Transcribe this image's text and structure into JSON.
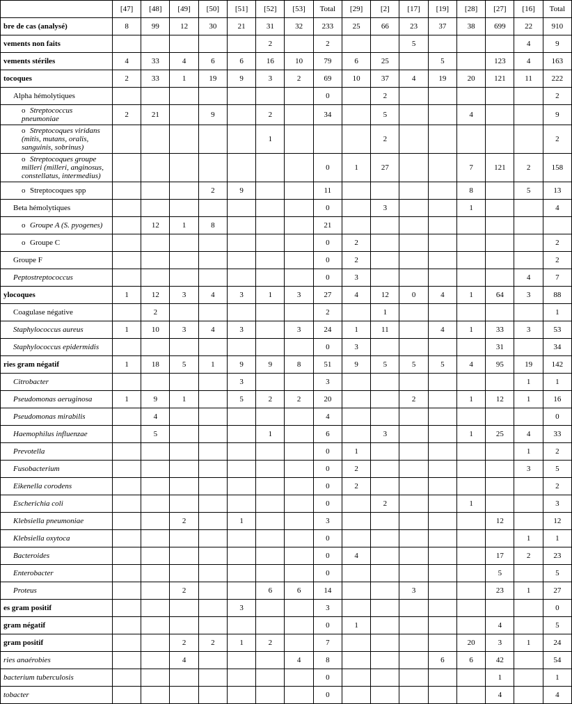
{
  "columns": [
    "[47]",
    "[48]",
    "[49]",
    "[50]",
    "[51]",
    "[52]",
    "[53]",
    "Total",
    "[29]",
    "[2]",
    "[17]",
    "[19]",
    "[28]",
    "[27]",
    "[16]",
    "Total"
  ],
  "rows": [
    {
      "label": "bre de cas (analysé)",
      "bold": true,
      "indent": 0,
      "vals": [
        "8",
        "99",
        "12",
        "30",
        "21",
        "31",
        "32",
        "233",
        "25",
        "66",
        "23",
        "37",
        "38",
        "699",
        "22",
        "910"
      ]
    },
    {
      "label": "vements non faits",
      "bold": true,
      "indent": 0,
      "vals": [
        "",
        "",
        "",
        "",
        "",
        "2",
        "",
        "2",
        "",
        "",
        "5",
        "",
        "",
        "",
        "4",
        "9"
      ]
    },
    {
      "label": "vements stériles",
      "bold": true,
      "indent": 0,
      "vals": [
        "4",
        "33",
        "4",
        "6",
        "6",
        "16",
        "10",
        "79",
        "6",
        "25",
        "",
        "5",
        "",
        "123",
        "4",
        "163"
      ]
    },
    {
      "label": "tocoques",
      "bold": true,
      "indent": 0,
      "vals": [
        "2",
        "33",
        "1",
        "19",
        "9",
        "3",
        "2",
        "69",
        "10",
        "37",
        "4",
        "19",
        "20",
        "121",
        "11",
        "222"
      ]
    },
    {
      "label": "Alpha hémolytiques",
      "indent": 1,
      "vals": [
        "",
        "",
        "",
        "",
        "",
        "",
        "",
        "0",
        "",
        "2",
        "",
        "",
        "",
        "",
        "",
        "2"
      ]
    },
    {
      "label": "Streptococcus pneumoniae",
      "ital": true,
      "indent": 2,
      "bullet": true,
      "vals": [
        "2",
        "21",
        "",
        "9",
        "",
        "2",
        "",
        "34",
        "",
        "5",
        "",
        "",
        "4",
        "",
        "",
        "9"
      ]
    },
    {
      "label": "Streptocoques viridans (mitis, mutans, oralis, sanguinis, sobrinus)",
      "ital": true,
      "indent": 2,
      "bullet": true,
      "vals": [
        "",
        "",
        "",
        "",
        "",
        "1",
        "",
        "",
        "",
        "2",
        "",
        "",
        "",
        "",
        "",
        "2"
      ]
    },
    {
      "label": "Streptocoques groupe milleri (milleri, anginosus, constellatus, intermedius)",
      "ital": true,
      "indent": 2,
      "bullet": true,
      "vals": [
        "",
        "",
        "",
        "",
        "",
        "",
        "",
        "0",
        "1",
        "27",
        "",
        "",
        "7",
        "121",
        "2",
        "158"
      ]
    },
    {
      "label": "Streptocoques spp",
      "indent": 2,
      "bullet": true,
      "vals": [
        "",
        "",
        "",
        "2",
        "9",
        "",
        "",
        "11",
        "",
        "",
        "",
        "",
        "8",
        "",
        "5",
        "13"
      ]
    },
    {
      "label": "Beta hémolytiques",
      "indent": 1,
      "vals": [
        "",
        "",
        "",
        "",
        "",
        "",
        "",
        "0",
        "",
        "3",
        "",
        "",
        "1",
        "",
        "",
        "4"
      ]
    },
    {
      "label": "Groupe A (S. pyogenes)",
      "ital": true,
      "indent": 2,
      "bullet": true,
      "vals": [
        "",
        "12",
        "1",
        "8",
        "",
        "",
        "",
        "21",
        "",
        "",
        "",
        "",
        "",
        "",
        "",
        ""
      ]
    },
    {
      "label": "Groupe C",
      "indent": 2,
      "bullet": true,
      "vals": [
        "",
        "",
        "",
        "",
        "",
        "",
        "",
        "0",
        "2",
        "",
        "",
        "",
        "",
        "",
        "",
        "2"
      ]
    },
    {
      "label": "Groupe F",
      "indent": 1,
      "vals": [
        "",
        "",
        "",
        "",
        "",
        "",
        "",
        "0",
        "2",
        "",
        "",
        "",
        "",
        "",
        "",
        "2"
      ]
    },
    {
      "label": "Peptostreptococcus",
      "ital": true,
      "indent": 1,
      "vals": [
        "",
        "",
        "",
        "",
        "",
        "",
        "",
        "0",
        "3",
        "",
        "",
        "",
        "",
        "",
        "4",
        "7"
      ]
    },
    {
      "label": "ylocoques",
      "bold": true,
      "indent": 0,
      "vals": [
        "1",
        "12",
        "3",
        "4",
        "3",
        "1",
        "3",
        "27",
        "4",
        "12",
        "0",
        "4",
        "1",
        "64",
        "3",
        "88"
      ]
    },
    {
      "label": "Coagulase négative",
      "indent": 1,
      "vals": [
        "",
        "2",
        "",
        "",
        "",
        "",
        "",
        "2",
        "",
        "1",
        "",
        "",
        "",
        "",
        "",
        "1"
      ]
    },
    {
      "label": "Staphylococcus aureus",
      "ital": true,
      "indent": 1,
      "vals": [
        "1",
        "10",
        "3",
        "4",
        "3",
        "",
        "3",
        "24",
        "1",
        "11",
        "",
        "4",
        "1",
        "33",
        "3",
        "53"
      ]
    },
    {
      "label": "Staphylococcus epidermidis",
      "ital": true,
      "indent": 1,
      "vals": [
        "",
        "",
        "",
        "",
        "",
        "",
        "",
        "0",
        "3",
        "",
        "",
        "",
        "",
        "31",
        "",
        "34"
      ]
    },
    {
      "label": "ries gram négatif",
      "bold": true,
      "indent": 0,
      "vals": [
        "1",
        "18",
        "5",
        "1",
        "9",
        "9",
        "8",
        "51",
        "9",
        "5",
        "5",
        "5",
        "4",
        "95",
        "19",
        "142"
      ]
    },
    {
      "label": "Citrobacter",
      "ital": true,
      "indent": 1,
      "vals": [
        "",
        "",
        "",
        "",
        "3",
        "",
        "",
        "3",
        "",
        "",
        "",
        "",
        "",
        "",
        "1",
        "1"
      ]
    },
    {
      "label": "Pseudomonas aeruginosa",
      "ital": true,
      "indent": 1,
      "vals": [
        "1",
        "9",
        "1",
        "",
        "5",
        "2",
        "2",
        "20",
        "",
        "",
        "2",
        "",
        "1",
        "12",
        "1",
        "16"
      ]
    },
    {
      "label": "Pseudomonas mirabilis",
      "ital": true,
      "indent": 1,
      "vals": [
        "",
        "4",
        "",
        "",
        "",
        "",
        "",
        "4",
        "",
        "",
        "",
        "",
        "",
        "",
        "",
        "0"
      ]
    },
    {
      "label": "Haemophilus influenzae",
      "ital": true,
      "indent": 1,
      "vals": [
        "",
        "5",
        "",
        "",
        "",
        "1",
        "",
        "6",
        "",
        "3",
        "",
        "",
        "1",
        "25",
        "4",
        "33"
      ]
    },
    {
      "label": "Prevotella",
      "ital": true,
      "indent": 1,
      "vals": [
        "",
        "",
        "",
        "",
        "",
        "",
        "",
        "0",
        "1",
        "",
        "",
        "",
        "",
        "",
        "1",
        "2"
      ]
    },
    {
      "label": "Fusobacterium",
      "ital": true,
      "indent": 1,
      "vals": [
        "",
        "",
        "",
        "",
        "",
        "",
        "",
        "0",
        "2",
        "",
        "",
        "",
        "",
        "",
        "3",
        "5"
      ]
    },
    {
      "label": "Eikenella corodens",
      "ital": true,
      "indent": 1,
      "vals": [
        "",
        "",
        "",
        "",
        "",
        "",
        "",
        "0",
        "2",
        "",
        "",
        "",
        "",
        "",
        "",
        "2"
      ]
    },
    {
      "label": "Escherichia coli",
      "ital": true,
      "indent": 1,
      "vals": [
        "",
        "",
        "",
        "",
        "",
        "",
        "",
        "0",
        "",
        "2",
        "",
        "",
        "1",
        "",
        "",
        "3"
      ]
    },
    {
      "label": "Klebsiella pneumoniae",
      "ital": true,
      "indent": 1,
      "vals": [
        "",
        "",
        "2",
        "",
        "1",
        "",
        "",
        "3",
        "",
        "",
        "",
        "",
        "",
        "12",
        "",
        "12"
      ]
    },
    {
      "label": "Klebsiella oxytoca",
      "ital": true,
      "indent": 1,
      "vals": [
        "",
        "",
        "",
        "",
        "",
        "",
        "",
        "0",
        "",
        "",
        "",
        "",
        "",
        "",
        "1",
        "1"
      ]
    },
    {
      "label": "Bacteroides",
      "ital": true,
      "indent": 1,
      "vals": [
        "",
        "",
        "",
        "",
        "",
        "",
        "",
        "0",
        "4",
        "",
        "",
        "",
        "",
        "17",
        "2",
        "23"
      ]
    },
    {
      "label": "Enterobacter",
      "ital": true,
      "indent": 1,
      "vals": [
        "",
        "",
        "",
        "",
        "",
        "",
        "",
        "0",
        "",
        "",
        "",
        "",
        "",
        "5",
        "",
        "5"
      ]
    },
    {
      "label": "Proteus",
      "ital": true,
      "indent": 1,
      "vals": [
        "",
        "",
        "2",
        "",
        "",
        "6",
        "6",
        "14",
        "",
        "",
        "3",
        "",
        "",
        "23",
        "1",
        "27"
      ]
    },
    {
      "label": "es gram positif",
      "bold": true,
      "indent": 0,
      "vals": [
        "",
        "",
        "",
        "",
        "3",
        "",
        "",
        "3",
        "",
        "",
        "",
        "",
        "",
        "",
        "",
        "0"
      ]
    },
    {
      "label": " gram négatif",
      "bold": true,
      "indent": 0,
      "vals": [
        "",
        "",
        "",
        "",
        "",
        "",
        "",
        "0",
        "1",
        "",
        "",
        "",
        "",
        "4",
        "",
        "5"
      ]
    },
    {
      "label": " gram positif",
      "bold": true,
      "indent": 0,
      "vals": [
        "",
        "",
        "2",
        "2",
        "1",
        "2",
        "",
        "7",
        "",
        "",
        "",
        "",
        "20",
        "3",
        "1",
        "24"
      ]
    },
    {
      "label": "ries anaérobies",
      "ital": true,
      "indent": 0,
      "vals": [
        "",
        "",
        "4",
        "",
        "",
        "",
        "4",
        "8",
        "",
        "",
        "",
        "6",
        "6",
        "42",
        "",
        "54"
      ]
    },
    {
      "label": "bacterium tuberculosis",
      "ital": true,
      "indent": 0,
      "vals": [
        "",
        "",
        "",
        "",
        "",
        "",
        "",
        "0",
        "",
        "",
        "",
        "",
        "",
        "1",
        "",
        "1"
      ]
    },
    {
      "label": "tobacter",
      "ital": true,
      "indent": 0,
      "vals": [
        "",
        "",
        "",
        "",
        "",
        "",
        "",
        "0",
        "",
        "",
        "",
        "",
        "",
        "4",
        "",
        "4"
      ]
    }
  ]
}
